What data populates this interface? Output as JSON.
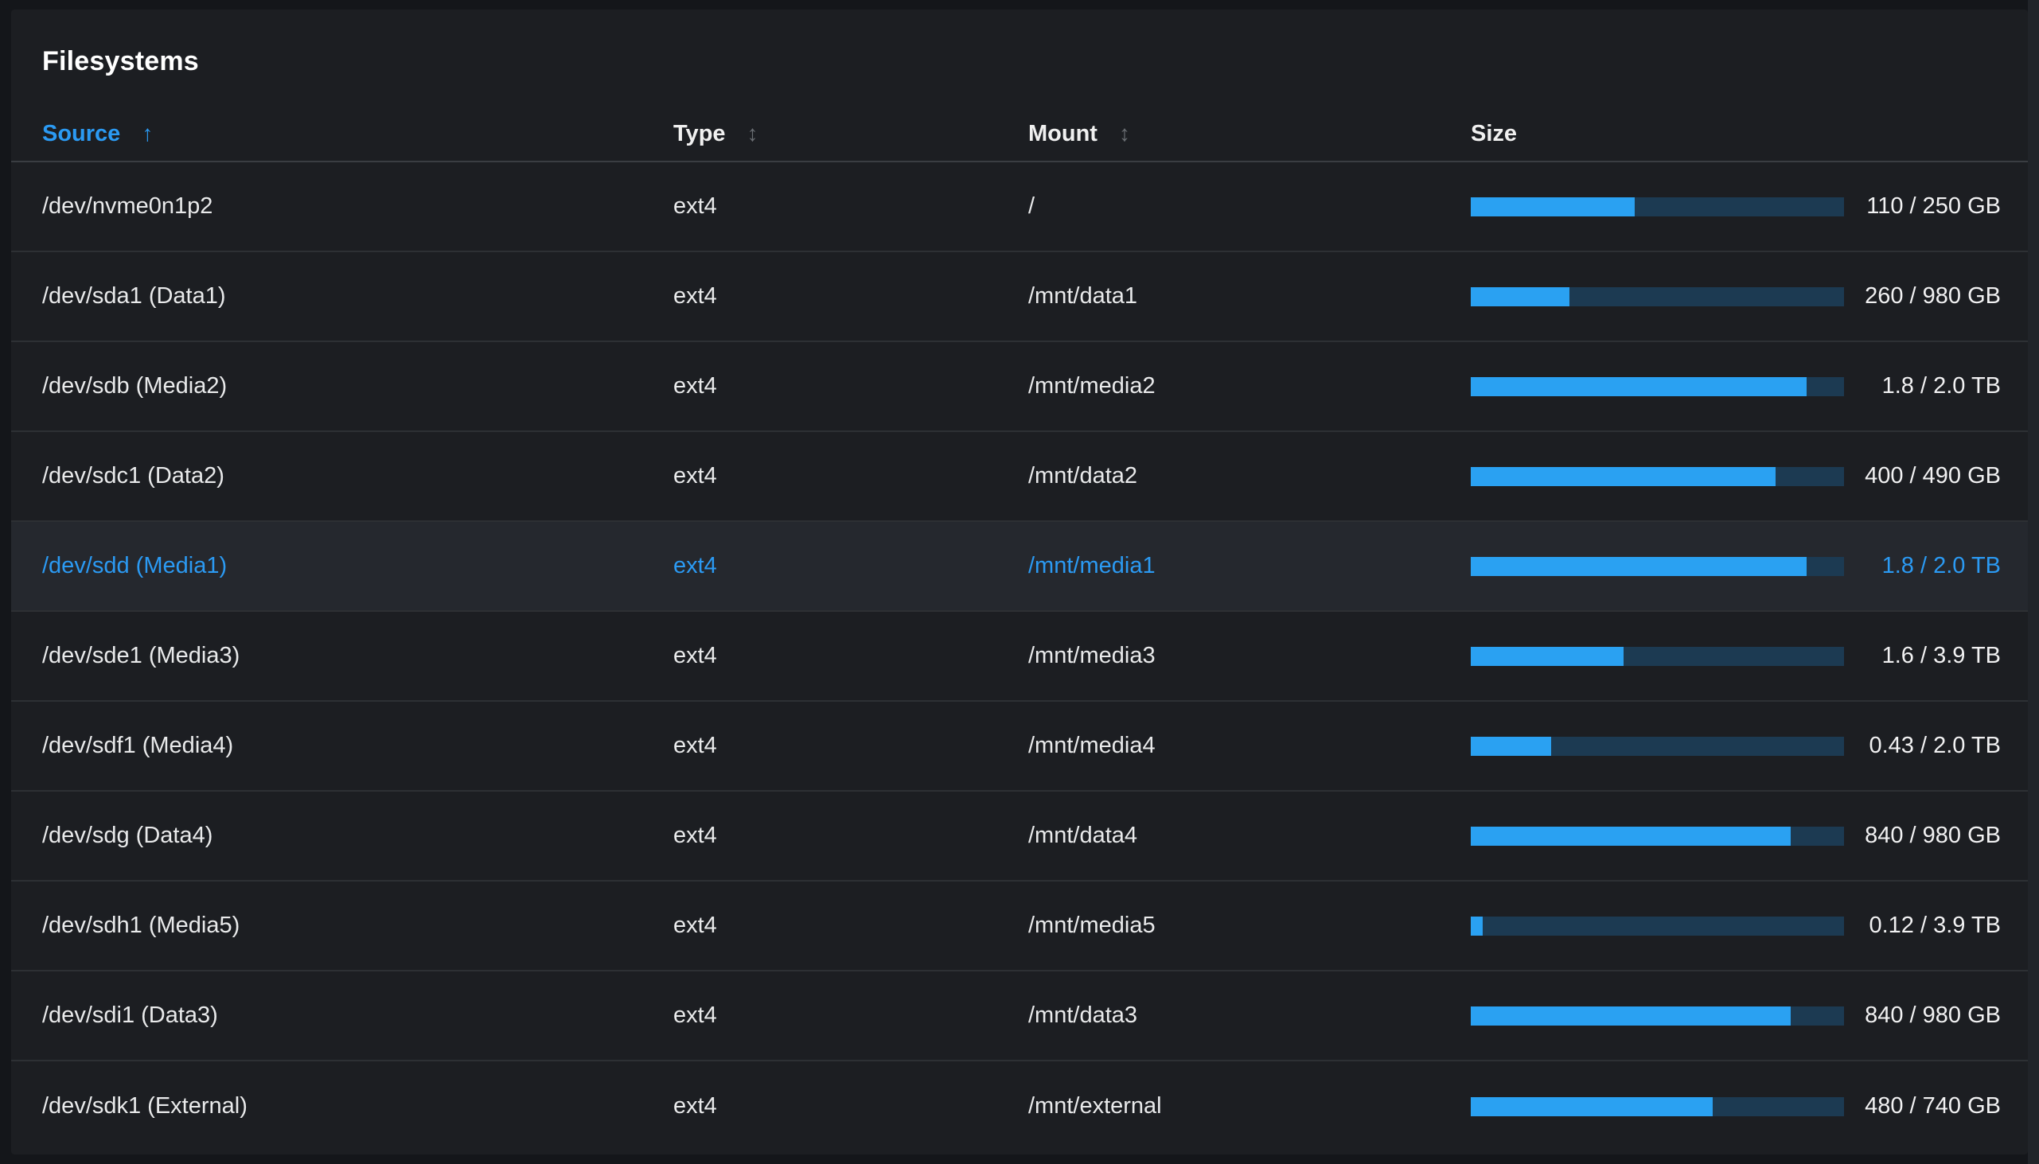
{
  "title": "Filesystems",
  "icons": {
    "sort_asc": "↑",
    "sort_both": "↕"
  },
  "colors": {
    "page_background": "#14161a",
    "card_background": "#1c1e22",
    "highlighted_row_background": "#25282e",
    "row_border": "#2d3034",
    "link_blue": "#2b9af3",
    "bar_fill": "#2aa1f2",
    "bar_track": "#1c3a52",
    "text": "#e9eaeb",
    "sort_icon_gray": "#6a6e73"
  },
  "table": {
    "columns": [
      {
        "label": "Source",
        "sortable": true,
        "sorted": "asc"
      },
      {
        "label": "Type",
        "sortable": true,
        "sorted": null
      },
      {
        "label": "Mount",
        "sortable": true,
        "sorted": null
      },
      {
        "label": "Size",
        "sortable": false,
        "sorted": null
      }
    ],
    "rows": [
      {
        "source": "/dev/nvme0n1p2",
        "type": "ext4",
        "mount": "/",
        "size_label": "110 / 250 GB",
        "used_percent": 44,
        "highlighted": false
      },
      {
        "source": "/dev/sda1 (Data1)",
        "type": "ext4",
        "mount": "/mnt/data1",
        "size_label": "260 / 980 GB",
        "used_percent": 26.5,
        "highlighted": false
      },
      {
        "source": "/dev/sdb (Media2)",
        "type": "ext4",
        "mount": "/mnt/media2",
        "size_label": "1.8 / 2.0 TB",
        "used_percent": 90,
        "highlighted": false
      },
      {
        "source": "/dev/sdc1 (Data2)",
        "type": "ext4",
        "mount": "/mnt/data2",
        "size_label": "400 / 490 GB",
        "used_percent": 81.6,
        "highlighted": false
      },
      {
        "source": "/dev/sdd (Media1)",
        "type": "ext4",
        "mount": "/mnt/media1",
        "size_label": "1.8 / 2.0 TB",
        "used_percent": 90,
        "highlighted": true
      },
      {
        "source": "/dev/sde1 (Media3)",
        "type": "ext4",
        "mount": "/mnt/media3",
        "size_label": "1.6 / 3.9 TB",
        "used_percent": 41,
        "highlighted": false
      },
      {
        "source": "/dev/sdf1 (Media4)",
        "type": "ext4",
        "mount": "/mnt/media4",
        "size_label": "0.43 / 2.0 TB",
        "used_percent": 21.5,
        "highlighted": false
      },
      {
        "source": "/dev/sdg (Data4)",
        "type": "ext4",
        "mount": "/mnt/data4",
        "size_label": "840 / 980 GB",
        "used_percent": 85.7,
        "highlighted": false
      },
      {
        "source": "/dev/sdh1 (Media5)",
        "type": "ext4",
        "mount": "/mnt/media5",
        "size_label": "0.12 / 3.9 TB",
        "used_percent": 3.1,
        "highlighted": false
      },
      {
        "source": "/dev/sdi1 (Data3)",
        "type": "ext4",
        "mount": "/mnt/data3",
        "size_label": "840 / 980 GB",
        "used_percent": 85.7,
        "highlighted": false
      },
      {
        "source": "/dev/sdk1 (External)",
        "type": "ext4",
        "mount": "/mnt/external",
        "size_label": "480 / 740 GB",
        "used_percent": 64.9,
        "highlighted": false
      }
    ]
  }
}
